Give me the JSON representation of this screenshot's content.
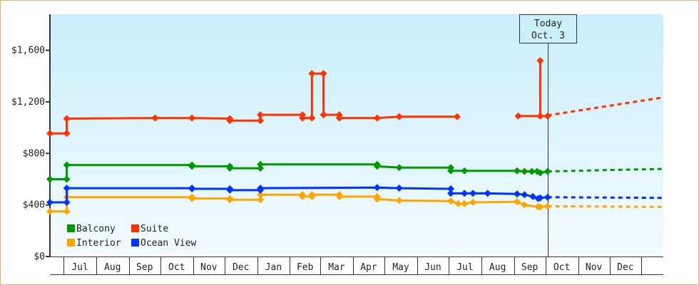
{
  "chart_data": {
    "type": "line",
    "title": "",
    "xlabel": "",
    "ylabel": "",
    "ylim": [
      0,
      1880
    ],
    "xlim": [
      "2023-06-18",
      "2025-01-21"
    ],
    "y_ticks": [
      "$0",
      "$400",
      "$800",
      "$1,200",
      "$1,600"
    ],
    "y_tick_values": [
      0,
      400,
      800,
      1200,
      1600
    ],
    "x_ticks": [
      {
        "label": "Jul",
        "start": "2023-07-01"
      },
      {
        "label": "Aug",
        "start": "2023-08-01"
      },
      {
        "label": "Sep",
        "start": "2023-09-01"
      },
      {
        "label": "Oct",
        "start": "2023-10-01"
      },
      {
        "label": "Nov",
        "start": "2023-11-01"
      },
      {
        "label": "Dec",
        "start": "2023-12-01"
      },
      {
        "label": "Jan",
        "start": "2024-01-01"
      },
      {
        "label": "Feb",
        "start": "2024-02-01"
      },
      {
        "label": "Mar",
        "start": "2024-03-01"
      },
      {
        "label": "Apr",
        "start": "2024-04-01"
      },
      {
        "label": "May",
        "start": "2024-05-01"
      },
      {
        "label": "Jun",
        "start": "2024-06-01"
      },
      {
        "label": "Jul",
        "start": "2024-07-01"
      },
      {
        "label": "Aug",
        "start": "2024-08-01"
      },
      {
        "label": "Sep",
        "start": "2024-09-01"
      },
      {
        "label": "Oct",
        "start": "2024-10-01"
      },
      {
        "label": "Nov",
        "start": "2024-11-01"
      },
      {
        "label": "Dec",
        "start": "2024-12-01"
      }
    ],
    "grid": false,
    "legend_position": "bottom-left",
    "today_marker": {
      "line1": "Today",
      "line2": "Oct. 3",
      "date": "2024-10-03"
    },
    "background": {
      "top": "#c9eefc",
      "bottom": "#f3fbfe"
    },
    "series": [
      {
        "name": "Balcony",
        "color": "#009900",
        "segments": [
          [
            [
              "2023-06-18",
              600
            ],
            [
              "2023-07-04",
              600
            ],
            [
              "2023-07-04",
              710
            ],
            [
              "2023-10-31",
              710
            ],
            [
              "2023-10-31",
              700
            ],
            [
              "2023-12-06",
              700
            ],
            [
              "2023-12-06",
              685
            ],
            [
              "2024-01-04",
              685
            ],
            [
              "2024-01-04",
              715
            ],
            [
              "2024-04-24",
              715
            ],
            [
              "2024-04-24",
              700
            ],
            [
              "2024-05-15",
              690
            ],
            [
              "2024-07-03",
              690
            ],
            [
              "2024-07-03",
              665
            ],
            [
              "2024-07-16",
              665
            ],
            [
              "2024-09-04",
              665
            ],
            [
              "2024-09-11",
              660
            ],
            [
              "2024-09-18",
              660
            ],
            [
              "2024-09-23",
              660
            ],
            [
              "2024-09-26",
              650
            ],
            [
              "2024-10-03",
              660
            ]
          ]
        ],
        "forecast": [
          [
            "2024-10-03",
            660
          ],
          [
            "2025-01-21",
            680
          ]
        ]
      },
      {
        "name": "Suite",
        "color": "#ff3300",
        "segments": [
          [
            [
              "2023-06-18",
              955
            ],
            [
              "2023-07-04",
              955
            ],
            [
              "2023-07-04",
              1070
            ],
            [
              "2023-09-26",
              1075
            ],
            [
              "2023-10-31",
              1075
            ],
            [
              "2023-12-06",
              1070
            ],
            [
              "2023-12-06",
              1055
            ],
            [
              "2024-01-04",
              1055
            ],
            [
              "2024-01-04",
              1100
            ],
            [
              "2024-02-13",
              1100
            ],
            [
              "2024-02-13",
              1075
            ],
            [
              "2024-02-22",
              1075
            ],
            [
              "2024-02-22",
              1420
            ],
            [
              "2024-03-04",
              1420
            ],
            [
              "2024-03-04",
              1100
            ],
            [
              "2024-03-19",
              1100
            ],
            [
              "2024-03-19",
              1075
            ],
            [
              "2024-04-24",
              1075
            ],
            [
              "2024-05-15",
              1085
            ],
            [
              "2024-07-09",
              1085
            ]
          ],
          [
            [
              "2024-09-05",
              1090
            ],
            [
              "2024-09-26",
              1090
            ],
            [
              "2024-09-26",
              1520
            ],
            [
              "2024-09-26",
              1090
            ],
            [
              "2024-10-03",
              1090
            ]
          ]
        ],
        "forecast": [
          [
            "2024-10-03",
            1095
          ],
          [
            "2025-01-21",
            1235
          ]
        ]
      },
      {
        "name": "Interior",
        "color": "#ffa500",
        "segments": [
          [
            [
              "2023-06-18",
              350
            ],
            [
              "2023-07-04",
              350
            ],
            [
              "2023-07-04",
              460
            ],
            [
              "2023-10-31",
              460
            ],
            [
              "2023-10-31",
              450
            ],
            [
              "2023-12-06",
              450
            ],
            [
              "2023-12-06",
              440
            ],
            [
              "2024-01-04",
              440
            ],
            [
              "2024-01-04",
              480
            ],
            [
              "2024-02-13",
              480
            ],
            [
              "2024-02-13",
              465
            ],
            [
              "2024-02-22",
              465
            ],
            [
              "2024-02-22",
              480
            ],
            [
              "2024-03-19",
              480
            ],
            [
              "2024-03-19",
              465
            ],
            [
              "2024-04-24",
              465
            ],
            [
              "2024-04-24",
              445
            ],
            [
              "2024-05-15",
              435
            ],
            [
              "2024-07-03",
              430
            ],
            [
              "2024-07-10",
              410
            ],
            [
              "2024-07-16",
              410
            ],
            [
              "2024-07-24",
              420
            ],
            [
              "2024-09-04",
              425
            ],
            [
              "2024-09-11",
              400
            ],
            [
              "2024-09-24",
              385
            ],
            [
              "2024-09-26",
              385
            ],
            [
              "2024-10-03",
              390
            ]
          ]
        ],
        "forecast": [
          [
            "2024-10-03",
            390
          ],
          [
            "2025-01-21",
            385
          ]
        ]
      },
      {
        "name": "Ocean View",
        "color": "#0033ff",
        "segments": [
          [
            [
              "2023-06-18",
              420
            ],
            [
              "2023-07-04",
              420
            ],
            [
              "2023-07-04",
              530
            ],
            [
              "2023-10-31",
              530
            ],
            [
              "2023-10-31",
              525
            ],
            [
              "2023-12-06",
              525
            ],
            [
              "2023-12-06",
              515
            ],
            [
              "2024-01-04",
              515
            ],
            [
              "2024-01-04",
              530
            ],
            [
              "2024-04-24",
              535
            ],
            [
              "2024-05-15",
              530
            ],
            [
              "2024-07-03",
              525
            ],
            [
              "2024-07-03",
              490
            ],
            [
              "2024-07-16",
              490
            ],
            [
              "2024-07-24",
              490
            ],
            [
              "2024-08-07",
              490
            ],
            [
              "2024-09-04",
              485
            ],
            [
              "2024-09-11",
              480
            ],
            [
              "2024-09-19",
              465
            ],
            [
              "2024-09-24",
              450
            ],
            [
              "2024-09-26",
              455
            ],
            [
              "2024-10-03",
              460
            ]
          ]
        ],
        "forecast": [
          [
            "2024-10-03",
            460
          ],
          [
            "2025-01-21",
            455
          ]
        ]
      }
    ],
    "legend_order": [
      "Balcony",
      "Suite",
      "Interior",
      "Ocean View"
    ]
  }
}
